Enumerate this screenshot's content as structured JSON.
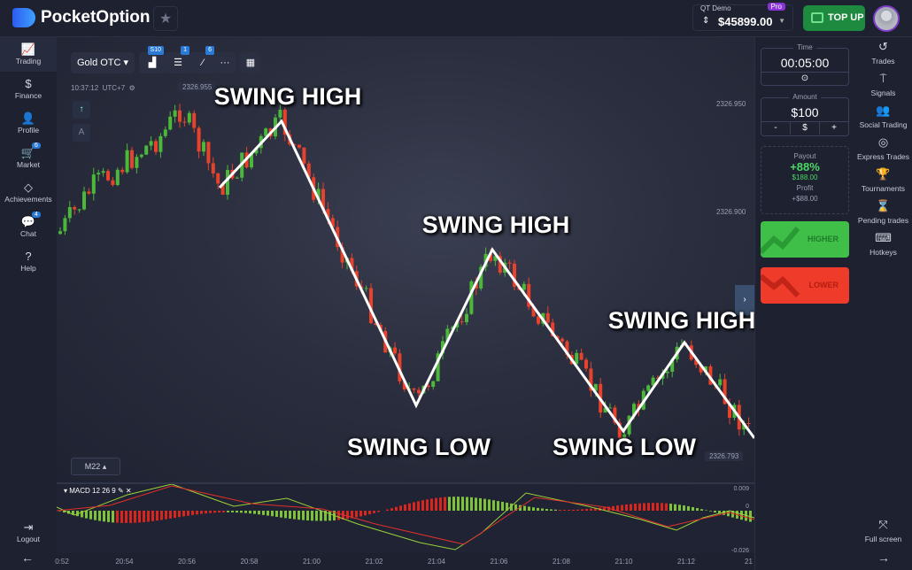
{
  "header": {
    "brand": "PocketOption",
    "account_label": "QT Demo",
    "account_tier": "Pro",
    "balance": "$45899.00",
    "top_up": "TOP UP"
  },
  "left_nav": [
    {
      "label": "Trading",
      "icon": "chart-line-icon",
      "badge": null
    },
    {
      "label": "Finance",
      "icon": "dollar-icon",
      "badge": null
    },
    {
      "label": "Profile",
      "icon": "user-icon",
      "badge": null
    },
    {
      "label": "Market",
      "icon": "cart-icon",
      "badge": "6"
    },
    {
      "label": "Achievements",
      "icon": "diamond-icon",
      "badge": null
    },
    {
      "label": "Chat",
      "icon": "chat-icon",
      "badge": "4"
    },
    {
      "label": "Help",
      "icon": "help-icon",
      "badge": null
    }
  ],
  "logout": "Logout",
  "toolbar": {
    "asset": "Gold OTC",
    "chart_type_badge": "S10",
    "indicators_badge": "1",
    "drawings_badge": "6"
  },
  "chart": {
    "time": "10:37:12",
    "timezone": "UTC+7",
    "timeframe": "M22",
    "price_top": "2326.955",
    "price_labels": [
      "2326.950",
      "2326.900"
    ],
    "price_current": "2326.793",
    "annotations": {
      "high": "SWING HIGH",
      "low": "SWING LOW"
    },
    "colors": {
      "up": "#4cb83a",
      "down": "#e8422c"
    }
  },
  "macd": {
    "label": "MACD 12 26 9",
    "levels": [
      "0.009",
      "0",
      "-0.026"
    ]
  },
  "time_axis": [
    "0:52",
    "20:54",
    "20:56",
    "20:58",
    "21:00",
    "21:02",
    "21:04",
    "21:06",
    "21:08",
    "21:10",
    "21:12",
    "21"
  ],
  "trade_panel": {
    "time_label": "Time",
    "time_value": "00:05:00",
    "amount_label": "Amount",
    "amount_value": "$100",
    "minus": "-",
    "currency": "$",
    "plus": "+",
    "payout_label": "Payout",
    "payout_percent": "+88%",
    "payout_amount": "$188.00",
    "profit_label": "Profit",
    "profit_value": "+$88.00",
    "higher": "HIGHER",
    "lower": "LOWER"
  },
  "right_nav": [
    {
      "label": "Trades",
      "icon": "history-icon"
    },
    {
      "label": "Signals",
      "icon": "signal-icon"
    },
    {
      "label": "Social Trading",
      "icon": "users-icon"
    },
    {
      "label": "Express Trades",
      "icon": "target-icon"
    },
    {
      "label": "Tournaments",
      "icon": "trophy-icon"
    },
    {
      "label": "Pending trades",
      "icon": "hourglass-icon"
    },
    {
      "label": "Hotkeys",
      "icon": "keyboard-icon"
    }
  ],
  "full_screen": "Full screen"
}
